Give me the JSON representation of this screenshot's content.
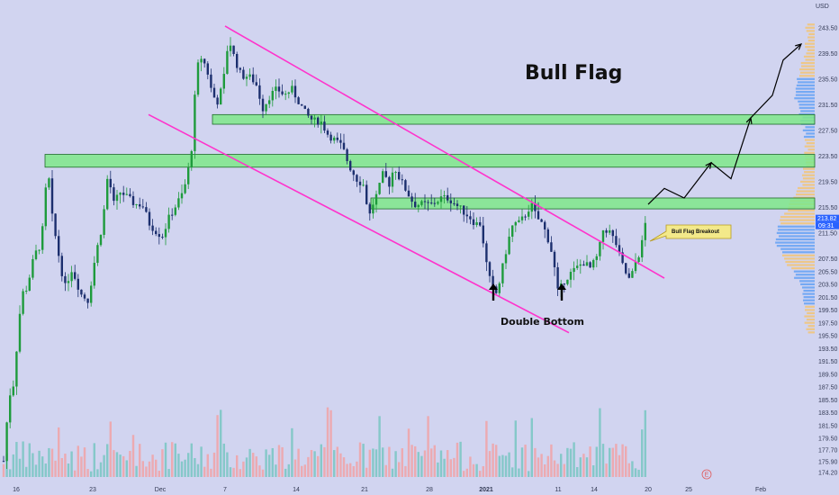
{
  "chart_data": {
    "type": "candlestick",
    "currency_label": "USD",
    "title": "Bull Flag",
    "annotations": {
      "double_bottom": "Double Bottom",
      "breakout_callout": "Bull Flag Breakout"
    },
    "price_range": [
      173.5,
      244.5
    ],
    "y_ticks": [
      "243.50",
      "239.50",
      "235.50",
      "231.50",
      "227.50",
      "223.50",
      "219.50",
      "215.50",
      "213.82",
      "09:31",
      "211.50",
      "207.50",
      "205.50",
      "203.50",
      "201.50",
      "199.50",
      "197.50",
      "195.50",
      "193.50",
      "191.50",
      "189.50",
      "187.50",
      "185.50",
      "183.50",
      "181.50",
      "179.50",
      "177.70",
      "175.90",
      "174.20"
    ],
    "price_badges": {
      "last": {
        "text": "213.82",
        "color": "#2962ff"
      },
      "countdown": {
        "text": "09:31",
        "color": "#2962ff"
      }
    },
    "x_ticks": [
      "16",
      "23",
      "Dec",
      "7",
      "14",
      "21",
      "28",
      "2021",
      "11",
      "14",
      "20",
      "25",
      "Feb"
    ],
    "event_marker": "E",
    "support_resistance_zones": [
      {
        "low": 228.5,
        "high": 230.0
      },
      {
        "low": 221.8,
        "high": 223.8
      },
      {
        "low": 215.3,
        "high": 217.0
      }
    ],
    "channel_lines": {
      "upper": [
        [
          "Dec 7",
          243.8
        ],
        [
          "Jan 22",
          204.5
        ]
      ],
      "lower": [
        [
          "Nov 30",
          230.0
        ],
        [
          "Jan 12",
          196.0
        ]
      ]
    },
    "projection_path": [
      [
        "Jan 20",
        216.0
      ],
      [
        "Jan 22",
        218.5
      ],
      [
        "Jan 24",
        217.0
      ],
      [
        "Jan 27",
        222.5
      ],
      [
        "Jan 29",
        220.0
      ],
      [
        "Jan 31",
        229.5
      ],
      [
        "Feb 3",
        233.0
      ],
      [
        "Feb 4",
        238.5
      ],
      [
        "Feb 6",
        241.0
      ]
    ],
    "colors": {
      "background": "#d1d4f0",
      "up_candle": "#1e9b3c",
      "down_candle": "#1c2f6e",
      "zone_fill": "#7fe88a",
      "channel_line": "#ff33cc",
      "volume_up": "#78c5c2",
      "volume_down": "#f1a2a6",
      "volume_profile_a": "#f5c36d",
      "volume_profile_b": "#5c9ef5"
    }
  }
}
